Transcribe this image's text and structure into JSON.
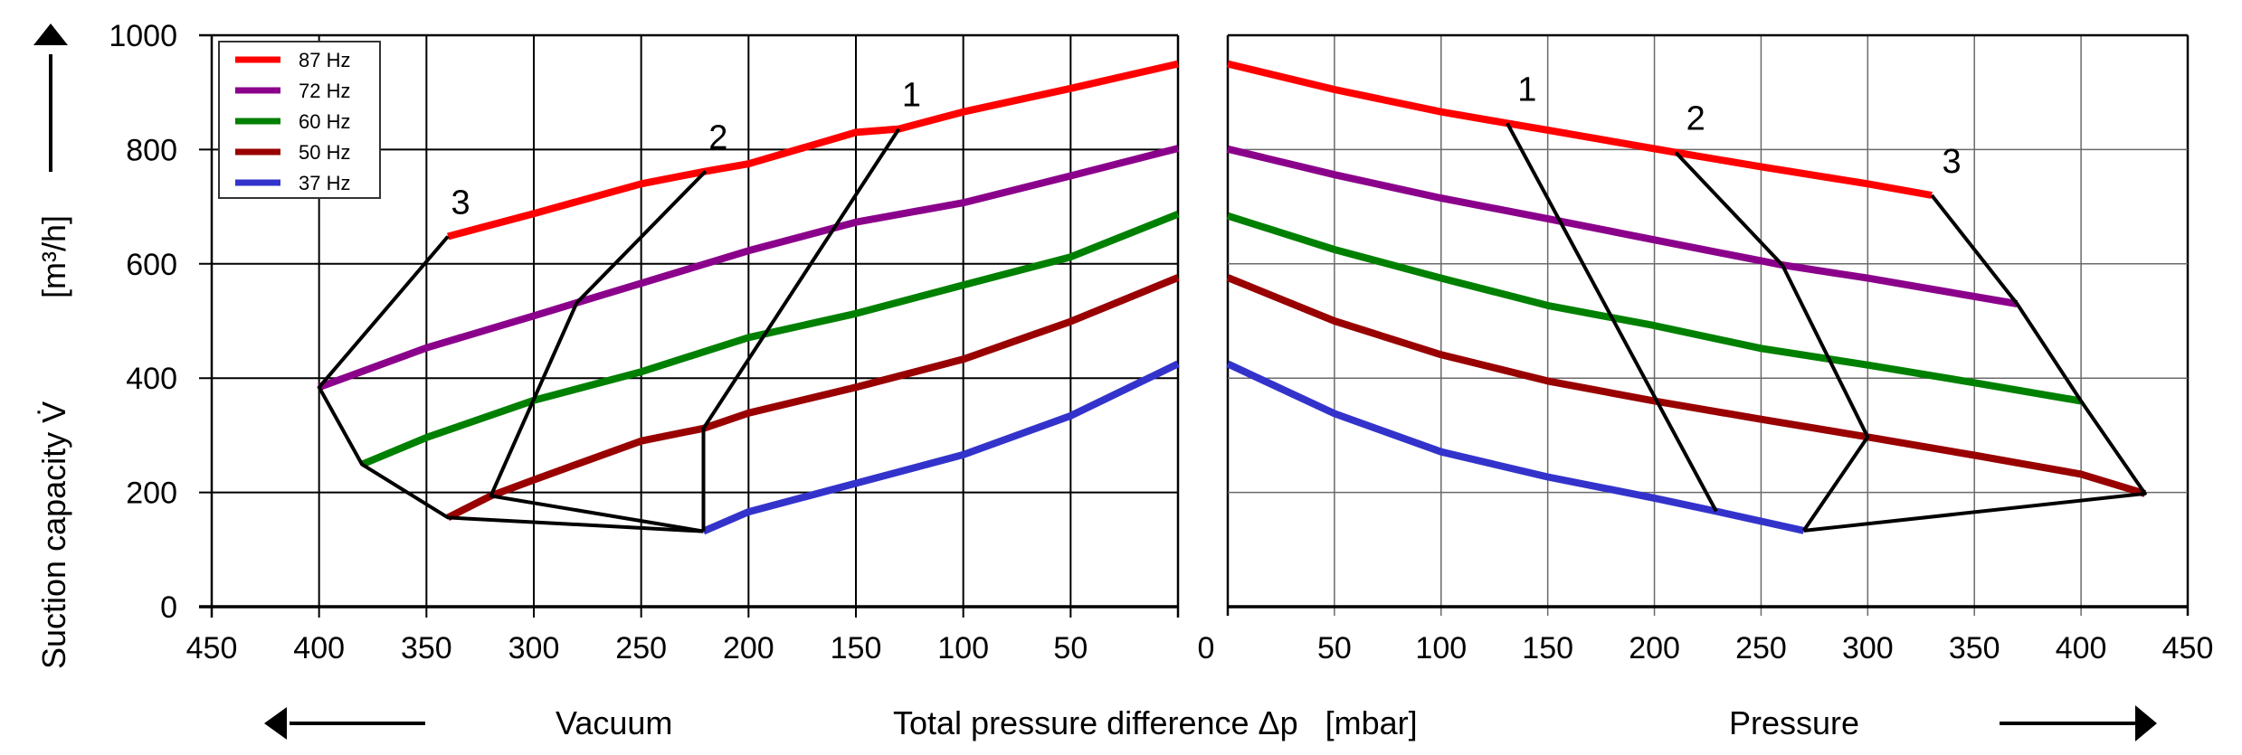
{
  "chart_data": {
    "type": "line",
    "title": "",
    "ylabel": "Suction capacity V̇",
    "ylabel_unit": "[m³/h]",
    "xlabel": "Total pressure difference Δp   [mbar]",
    "xlabel_left": "Vacuum",
    "xlabel_right": "Pressure",
    "ylim": [
      0,
      1000
    ],
    "yticks": [
      "0",
      "200",
      "400",
      "600",
      "800",
      "1000"
    ],
    "grid": true,
    "legend_position": "top-left",
    "panels": [
      {
        "name": "Vacuum",
        "xlim": [
          450,
          0
        ],
        "xticks": [
          "450",
          "400",
          "350",
          "300",
          "250",
          "200",
          "150",
          "100",
          "50",
          "0"
        ],
        "series": [
          {
            "name": "87 Hz",
            "color": "#ff0000",
            "x": [
              340,
              300,
              250,
              220,
              200,
              150,
              130,
              100,
              50,
              0
            ],
            "y": [
              648,
              688,
              740,
              762,
              775,
              830,
              836,
              866,
              907,
              950
            ]
          },
          {
            "name": "72 Hz",
            "color": "#8b008b",
            "x": [
              400,
              350,
              300,
              280,
              250,
              200,
              150,
              100,
              50,
              0
            ],
            "y": [
              384,
              453,
              509,
              532,
              566,
              623,
              673,
              707,
              754,
              802
            ]
          },
          {
            "name": "60 Hz",
            "color": "#008000",
            "x": [
              380,
              350,
              300,
              250,
              200,
              150,
              100,
              50,
              0
            ],
            "y": [
              249,
              296,
              361,
              411,
              471,
              513,
              563,
              612,
              687
            ]
          },
          {
            "name": "50 Hz",
            "color": "#990000",
            "x": [
              340,
              320,
              300,
              250,
              221,
              200,
              150,
              100,
              50,
              0
            ],
            "y": [
              156,
              194,
              222,
              290,
              312,
              339,
              384,
              433,
              499,
              576
            ]
          },
          {
            "name": "37 Hz",
            "color": "#3333cc",
            "x": [
              221,
              200,
              150,
              100,
              50,
              0
            ],
            "y": [
              132,
              166,
              216,
              266,
              334,
              425
            ]
          }
        ],
        "boundaries": [
          {
            "label": "1",
            "x": [
              130,
              221,
              221
            ],
            "y": [
              836,
              312,
              132
            ]
          },
          {
            "label": "2",
            "x": [
              220,
              280,
              320,
              221
            ],
            "y": [
              762,
              532,
              194,
              132
            ]
          },
          {
            "label": "3",
            "x": [
              340,
              400,
              380,
              340,
              221
            ],
            "y": [
              648,
              384,
              249,
              156,
              132
            ]
          }
        ]
      },
      {
        "name": "Pressure",
        "xlim": [
          0,
          450
        ],
        "xticks": [
          "",
          "50",
          "100",
          "150",
          "200",
          "250",
          "300",
          "350",
          "400",
          "450"
        ],
        "series": [
          {
            "name": "87 Hz",
            "color": "#ff0000",
            "x": [
              0,
              50,
              100,
              131,
              150,
              210,
              250,
              300,
              330
            ],
            "y": [
              950,
              905,
              866,
              846,
              834,
              795,
              770,
              740,
              720
            ]
          },
          {
            "name": "72 Hz",
            "color": "#8b008b",
            "x": [
              0,
              50,
              100,
              150,
              200,
              260,
              300,
              370
            ],
            "y": [
              801,
              756,
              715,
              679,
              642,
              598,
              575,
              530
            ]
          },
          {
            "name": "60 Hz",
            "color": "#008000",
            "x": [
              0,
              50,
              100,
              150,
              200,
              250,
              300,
              350,
              400
            ],
            "y": [
              684,
              625,
              575,
              527,
              492,
              452,
              423,
              392,
              360
            ]
          },
          {
            "name": "50 Hz",
            "color": "#990000",
            "x": [
              0,
              50,
              100,
              150,
              200,
              250,
              300,
              350,
              400,
              430
            ],
            "y": [
              576,
              500,
              441,
              395,
              360,
              328,
              297,
              265,
              232,
              198
            ]
          },
          {
            "name": "37 Hz",
            "color": "#3333cc",
            "x": [
              0,
              50,
              100,
              150,
              200,
              229,
              270
            ],
            "y": [
              425,
              338,
              271,
              227,
              190,
              167,
              133
            ]
          }
        ],
        "boundaries": [
          {
            "label": "1",
            "x": [
              131,
              229
            ],
            "y": [
              846,
              167
            ]
          },
          {
            "label": "2",
            "x": [
              210,
              260,
              300,
              270
            ],
            "y": [
              795,
              598,
              297,
              133
            ]
          },
          {
            "label": "3",
            "x": [
              330,
              370,
              400,
              430,
              270
            ],
            "y": [
              720,
              530,
              360,
              198,
              133
            ]
          }
        ]
      }
    ],
    "legend": [
      "87 Hz",
      "72 Hz",
      "60 Hz",
      "50 Hz",
      "37 Hz"
    ],
    "legend_colors": [
      "#ff0000",
      "#8b008b",
      "#008000",
      "#990000",
      "#3333cc"
    ]
  }
}
